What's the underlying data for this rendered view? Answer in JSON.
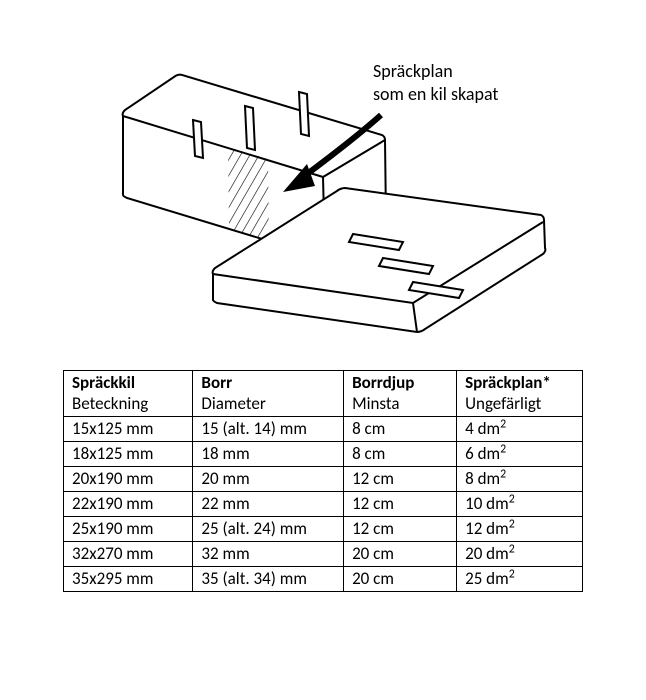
{
  "diagram": {
    "callout_line1": "Spräckplan",
    "callout_line2": "som en kil skapat",
    "stroke_color": "#000000",
    "fill_color": "#ffffff",
    "hatch_color": "#000000",
    "line_width_outline": 2,
    "line_width_slot": 2,
    "arrow_line_width": 6
  },
  "table": {
    "border_color": "#000000",
    "font_size": 17,
    "columns": [
      {
        "top": "Spräckkil",
        "sub": "Beteckning"
      },
      {
        "top": "Borr",
        "sub": "Diameter"
      },
      {
        "top": "Borrdjup",
        "sub": "Minsta"
      },
      {
        "top": "Spräckplan*",
        "sub": "Ungefärligt"
      }
    ],
    "rows": [
      {
        "c1": "15x125 mm",
        "c2": "15 (alt. 14) mm",
        "c3": "8 cm",
        "c4": "4  dm²"
      },
      {
        "c1": "18x125 mm",
        "c2": "18 mm",
        "c3": "8 cm",
        "c4": "6  dm²"
      },
      {
        "c1": "20x190 mm",
        "c2": "20 mm",
        "c3": "12 cm",
        "c4": "8  dm²"
      },
      {
        "c1": "22x190 mm",
        "c2": "22 mm",
        "c3": "12 cm",
        "c4": "10 dm²"
      },
      {
        "c1": "25x190 mm",
        "c2": "25 (alt. 24) mm",
        "c3": "12 cm",
        "c4": "12 dm²"
      },
      {
        "c1": "32x270 mm",
        "c2": "32 mm",
        "c3": "20 cm",
        "c4": "20 dm²"
      },
      {
        "c1": "35x295 mm",
        "c2": "35 (alt. 34) mm",
        "c3": "20 cm",
        "c4": "25 dm²"
      }
    ]
  }
}
